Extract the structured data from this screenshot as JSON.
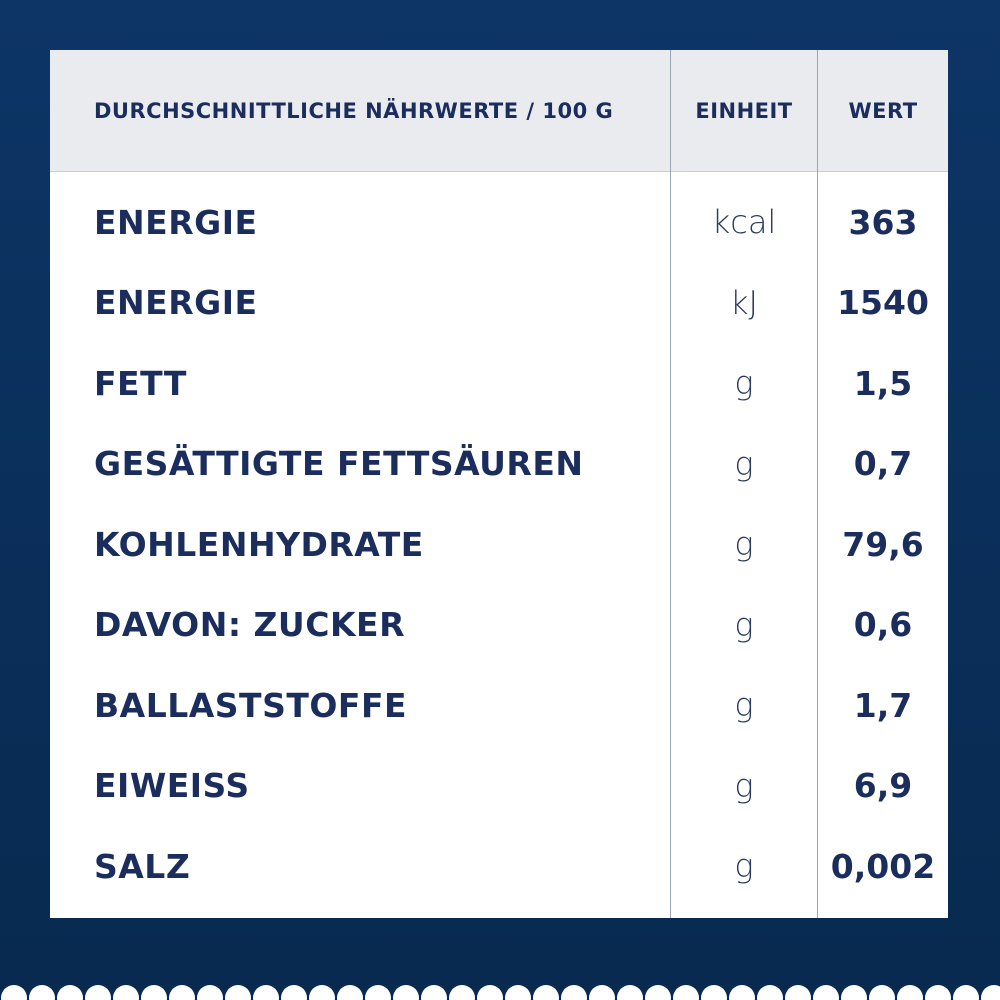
{
  "table": {
    "header": [
      "DURCHSCHNITTLICHE NÄHRWERTE / 100 G",
      "EINHEIT",
      "WERT"
    ],
    "rows": [
      [
        "ENERGIE",
        "kcal",
        "363"
      ],
      [
        "ENERGIE",
        "kJ",
        "1540"
      ],
      [
        "FETT",
        "g",
        "1,5"
      ],
      [
        "GESÄTTIGTE FETTSÄUREN",
        "g",
        "0,7"
      ],
      [
        "KOHLENHYDRATE",
        "g",
        "79,6"
      ],
      [
        "DAVON: ZUCKER",
        "g",
        "0,6"
      ],
      [
        "BALLASTSTOFFE",
        "g",
        "1,7"
      ],
      [
        "EIWEISS",
        "g",
        "6,9"
      ],
      [
        "SALZ",
        "g",
        "0,002"
      ]
    ]
  }
}
